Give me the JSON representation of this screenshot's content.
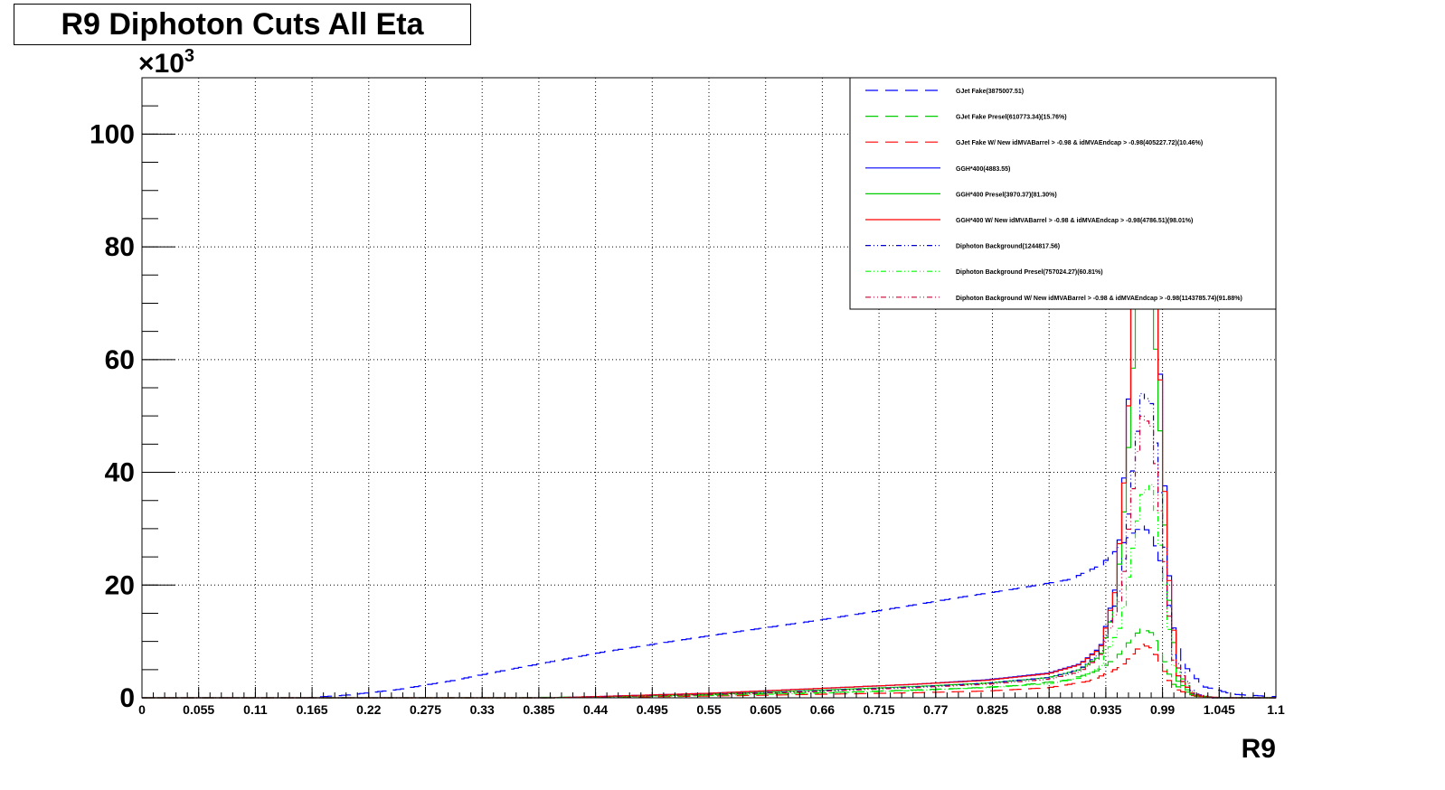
{
  "chart_data": {
    "type": "line",
    "title": "R9 Diphoton Cuts All Eta",
    "xlabel": "R9",
    "ylabel": "",
    "y_multiplier_label": "×10",
    "y_multiplier_exponent": "3",
    "xlim": [
      0,
      1.1
    ],
    "ylim": [
      0,
      110
    ],
    "x_ticks": [
      "0",
      "0.055",
      "0.11",
      "0.165",
      "0.22",
      "0.275",
      "0.33",
      "0.385",
      "0.44",
      "0.495",
      "0.55",
      "0.605",
      "0.66",
      "0.715",
      "0.77",
      "0.825",
      "0.88",
      "0.935",
      "0.99",
      "1.045",
      "1.1"
    ],
    "y_ticks": [
      "0",
      "20",
      "40",
      "60",
      "80",
      "100"
    ],
    "grid": true,
    "legend_position": "top-right",
    "series": [
      {
        "name": "GJet Fake(3875007.51)",
        "color": "#0000ff",
        "dash": "long-dash",
        "x": [
          0.16,
          0.2,
          0.25,
          0.3,
          0.35,
          0.4,
          0.45,
          0.5,
          0.55,
          0.6,
          0.65,
          0.7,
          0.75,
          0.8,
          0.85,
          0.9,
          0.93,
          0.95,
          0.96,
          0.97,
          0.98,
          0.99,
          1.0,
          1.01,
          1.03,
          1.06,
          1.1
        ],
        "y": [
          0.0,
          0.5,
          1.5,
          3.0,
          4.8,
          6.5,
          8.2,
          9.6,
          11.0,
          12.3,
          13.6,
          15.0,
          16.5,
          18.0,
          19.4,
          21.0,
          23.5,
          27.0,
          29.0,
          30.5,
          29.0,
          23.0,
          13.0,
          6.0,
          2.0,
          0.6,
          0.2
        ]
      },
      {
        "name": "GJet Fake Presel(610773.34)(15.76%)",
        "color": "#00cc00",
        "dash": "long-dash",
        "x": [
          0.35,
          0.5,
          0.6,
          0.7,
          0.8,
          0.85,
          0.9,
          0.93,
          0.95,
          0.96,
          0.97,
          0.98,
          0.99,
          1.0,
          1.02,
          1.05
        ],
        "y": [
          0.0,
          0.3,
          0.7,
          1.1,
          1.7,
          2.2,
          3.2,
          5.0,
          8.0,
          10.5,
          12.2,
          11.5,
          7.5,
          2.5,
          0.4,
          0.0
        ]
      },
      {
        "name": "GJet Fake W/ New idMVABarrel > -0.98 & idMVAEndcap > -0.98(405227.72)(10.46%)",
        "color": "#ff0000",
        "dash": "long-dash",
        "x": [
          0.4,
          0.55,
          0.65,
          0.75,
          0.82,
          0.88,
          0.92,
          0.95,
          0.96,
          0.97,
          0.98,
          0.99,
          1.0,
          1.02,
          1.05
        ],
        "y": [
          0.0,
          0.3,
          0.6,
          0.9,
          1.2,
          1.8,
          3.0,
          5.5,
          7.5,
          9.5,
          8.8,
          5.5,
          1.8,
          0.3,
          0.0
        ]
      },
      {
        "name": "GGH*400(4883.55)",
        "color": "#0000ff",
        "dash": "solid",
        "x": [
          0.4,
          0.55,
          0.65,
          0.75,
          0.82,
          0.88,
          0.91,
          0.93,
          0.945,
          0.955,
          0.965,
          0.975,
          0.985,
          0.995,
          1.005,
          1.02,
          1.04
        ],
        "y": [
          0.0,
          0.8,
          1.6,
          2.4,
          3.2,
          4.4,
          6.0,
          9.0,
          20.0,
          45.0,
          85.0,
          100.0,
          70.0,
          25.0,
          4.0,
          0.5,
          0.0
        ]
      },
      {
        "name": "GGH*400 Presel(3970.37)(81.30%)",
        "color": "#00cc00",
        "dash": "solid",
        "x": [
          0.4,
          0.55,
          0.65,
          0.75,
          0.82,
          0.88,
          0.91,
          0.93,
          0.945,
          0.955,
          0.965,
          0.975,
          0.985,
          0.995,
          1.005,
          1.02,
          1.04
        ],
        "y": [
          0.0,
          0.6,
          1.3,
          2.0,
          2.6,
          3.6,
          5.0,
          7.5,
          17.0,
          38.0,
          70.0,
          82.0,
          58.0,
          20.0,
          3.0,
          0.4,
          0.0
        ]
      },
      {
        "name": "GGH*400 W/ New idMVABarrel > -0.98 & idMVAEndcap > -0.98(4786.51)(98.01%)",
        "color": "#ff0000",
        "dash": "solid",
        "x": [
          0.4,
          0.55,
          0.65,
          0.75,
          0.82,
          0.88,
          0.91,
          0.93,
          0.945,
          0.955,
          0.965,
          0.975,
          0.985,
          0.995,
          1.005,
          1.02,
          1.04
        ],
        "y": [
          0.0,
          0.8,
          1.6,
          2.4,
          3.1,
          4.3,
          5.9,
          8.8,
          19.5,
          44.0,
          83.0,
          98.0,
          69.0,
          24.0,
          4.0,
          0.5,
          0.0
        ]
      },
      {
        "name": "Diphoton Background(1244817.56)",
        "color": "#0000cc",
        "dash": "dash-dot",
        "x": [
          0.4,
          0.55,
          0.65,
          0.75,
          0.82,
          0.88,
          0.91,
          0.93,
          0.95,
          0.96,
          0.97,
          0.98,
          0.99,
          1.0,
          1.02,
          1.04
        ],
        "y": [
          0.0,
          0.6,
          1.2,
          1.9,
          2.6,
          3.6,
          5.0,
          8.0,
          20.0,
          38.0,
          54.0,
          52.0,
          32.0,
          8.0,
          0.8,
          0.0
        ]
      },
      {
        "name": "Diphoton Background Presel(757024.27)(60.81%)",
        "color": "#00ff00",
        "dash": "dash-dot",
        "x": [
          0.4,
          0.55,
          0.65,
          0.75,
          0.82,
          0.88,
          0.91,
          0.93,
          0.95,
          0.96,
          0.97,
          0.98,
          0.99,
          1.0,
          1.02,
          1.04
        ],
        "y": [
          0.0,
          0.4,
          0.8,
          1.3,
          1.8,
          2.5,
          3.5,
          5.5,
          13.0,
          25.0,
          36.0,
          38.0,
          24.0,
          6.0,
          0.6,
          0.0
        ]
      },
      {
        "name": "Diphoton Background W/ New idMVABarrel > -0.98 & idMVAEndcap > -0.98(1143785.74)(91.88%)",
        "color": "#cc0033",
        "dash": "dash-dot",
        "x": [
          0.4,
          0.55,
          0.65,
          0.75,
          0.82,
          0.88,
          0.91,
          0.93,
          0.95,
          0.96,
          0.97,
          0.98,
          0.99,
          1.0,
          1.02,
          1.04
        ],
        "y": [
          0.0,
          0.55,
          1.1,
          1.8,
          2.4,
          3.3,
          4.6,
          7.4,
          18.0,
          35.0,
          50.0,
          48.0,
          29.0,
          7.0,
          0.7,
          0.0
        ]
      }
    ]
  }
}
